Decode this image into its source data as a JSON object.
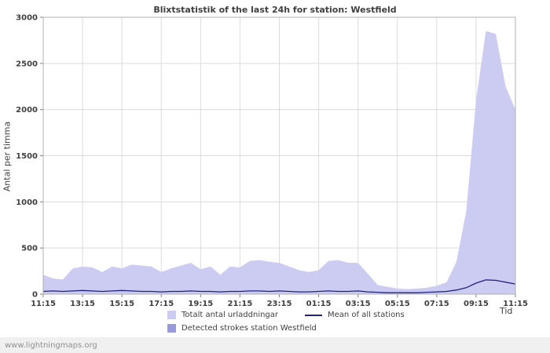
{
  "watermark": "www.lightningmaps.org",
  "chart_data": {
    "type": "area",
    "title": "Blixtstatistik of the last 24h for station: Westfield",
    "xlabel": "Tid",
    "ylabel": "Antal per timma",
    "ylim": [
      0,
      3000
    ],
    "yticks": [
      0,
      500,
      1000,
      1500,
      2000,
      2500,
      3000
    ],
    "xticklabels": [
      "11:15",
      "13:15",
      "15:15",
      "17:15",
      "19:15",
      "21:15",
      "23:15",
      "01:15",
      "03:15",
      "05:15",
      "07:15",
      "09:15",
      "11:15"
    ],
    "x_sample_step_minutes": 30,
    "grid": true,
    "legend_position": "bottom",
    "series": [
      {
        "name": "Totalt antal urladdningar",
        "type": "area",
        "color": "#ccccf2",
        "values": [
          210,
          170,
          160,
          280,
          300,
          290,
          240,
          300,
          280,
          320,
          310,
          300,
          240,
          280,
          310,
          340,
          270,
          300,
          210,
          300,
          290,
          360,
          370,
          350,
          340,
          300,
          260,
          240,
          260,
          360,
          370,
          340,
          340,
          220,
          100,
          80,
          60,
          55,
          60,
          70,
          90,
          130,
          350,
          900,
          2100,
          2850,
          2820,
          2250,
          2000
        ]
      },
      {
        "name": "Detected strokes station Westfield",
        "type": "area",
        "color": "#9999dd",
        "values": [
          0,
          0,
          0,
          0,
          0,
          0,
          0,
          0,
          0,
          0,
          0,
          0,
          0,
          0,
          0,
          0,
          0,
          0,
          0,
          0,
          0,
          0,
          0,
          0,
          0,
          0,
          0,
          0,
          0,
          0,
          0,
          0,
          0,
          0,
          0,
          0,
          0,
          0,
          0,
          0,
          0,
          0,
          0,
          0,
          0,
          0,
          0,
          0,
          0
        ]
      },
      {
        "name": "Mean of all stations",
        "type": "line",
        "color": "#202080",
        "values": [
          30,
          35,
          30,
          35,
          40,
          35,
          30,
          35,
          40,
          35,
          30,
          30,
          25,
          30,
          30,
          35,
          30,
          30,
          25,
          30,
          30,
          35,
          35,
          30,
          35,
          30,
          25,
          25,
          30,
          35,
          30,
          30,
          35,
          25,
          20,
          15,
          15,
          15,
          15,
          20,
          25,
          30,
          45,
          70,
          120,
          155,
          150,
          130,
          110
        ]
      }
    ]
  }
}
